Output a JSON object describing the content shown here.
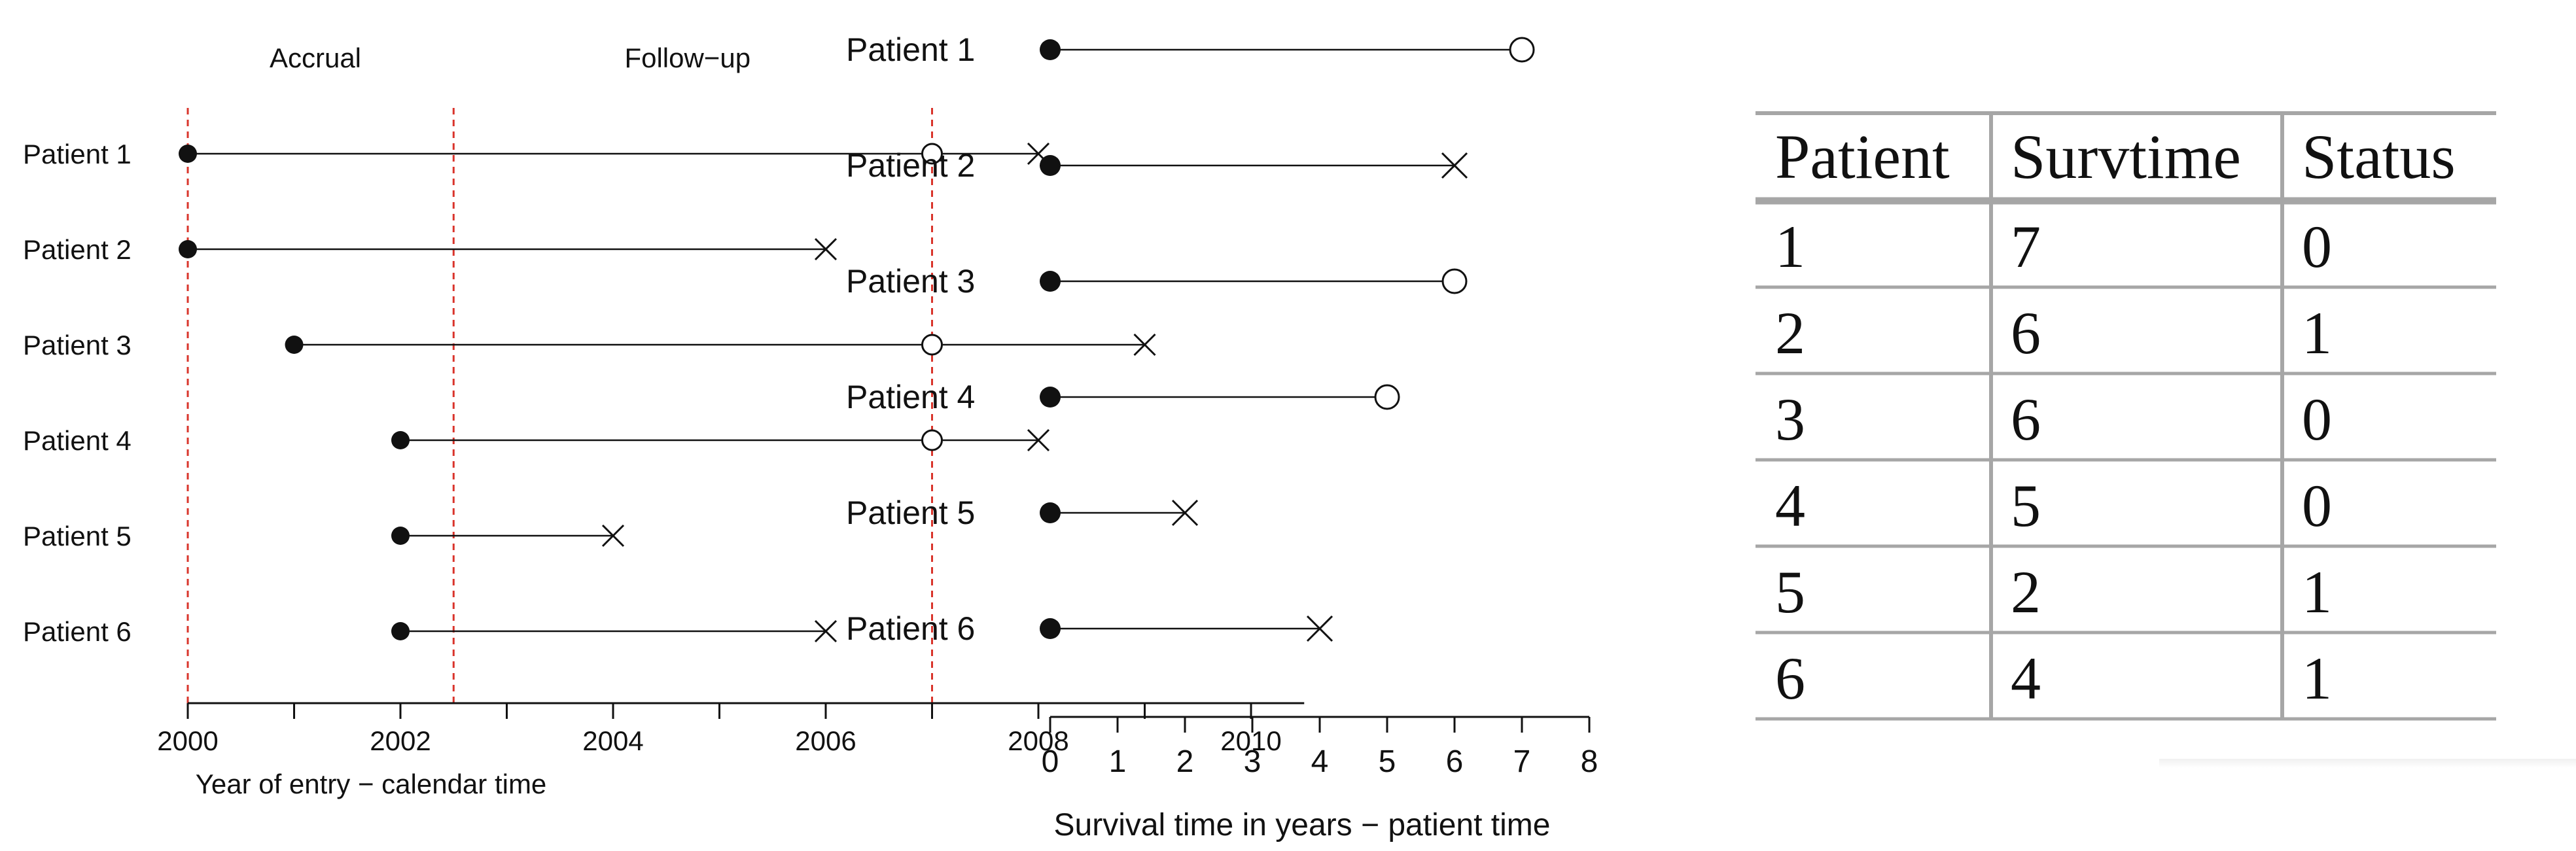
{
  "chart_data": [
    {
      "type": "timeline",
      "xlabel": "Year of entry − calendar time",
      "xlim": [
        2000,
        2010.5
      ],
      "xticks": [
        2000,
        2002,
        2004,
        2006,
        2008,
        2010
      ],
      "annotations": [
        {
          "text": "Accrual",
          "x": 2001.2
        },
        {
          "text": "Follow−up",
          "x": 2004.7
        }
      ],
      "vlines": [
        2000,
        2002.5,
        2007
      ],
      "vline_color": "#d9342b",
      "patients": [
        {
          "label": "Patient 1",
          "start": 2000,
          "end": 2008,
          "end_marker": "cross",
          "open_marks": [
            2007
          ]
        },
        {
          "label": "Patient 2",
          "start": 2000,
          "end": 2006,
          "end_marker": "cross",
          "open_marks": []
        },
        {
          "label": "Patient 3",
          "start": 2001,
          "end": 2009,
          "end_marker": "cross",
          "open_marks": [
            2007
          ]
        },
        {
          "label": "Patient 4",
          "start": 2002,
          "end": 2008,
          "end_marker": "cross",
          "open_marks": [
            2007
          ]
        },
        {
          "label": "Patient 5",
          "start": 2002,
          "end": 2004,
          "end_marker": "cross",
          "open_marks": []
        },
        {
          "label": "Patient 6",
          "start": 2002,
          "end": 2006,
          "end_marker": "cross",
          "open_marks": []
        }
      ]
    },
    {
      "type": "timeline",
      "xlabel": "Survival time in years − patient time",
      "xlim": [
        0,
        8
      ],
      "xticks": [
        0,
        1,
        2,
        3,
        4,
        5,
        6,
        7,
        8
      ],
      "patients": [
        {
          "label": "Patient 1",
          "start": 0,
          "end": 7,
          "end_marker": "circle"
        },
        {
          "label": "Patient 2",
          "start": 0,
          "end": 6,
          "end_marker": "cross"
        },
        {
          "label": "Patient 3",
          "start": 0,
          "end": 6,
          "end_marker": "circle"
        },
        {
          "label": "Patient 4",
          "start": 0,
          "end": 5,
          "end_marker": "circle"
        },
        {
          "label": "Patient 5",
          "start": 0,
          "end": 2,
          "end_marker": "cross"
        },
        {
          "label": "Patient 6",
          "start": 0,
          "end": 4,
          "end_marker": "cross"
        }
      ]
    },
    {
      "type": "table",
      "columns": [
        "Patient",
        "Survtime",
        "Status"
      ],
      "rows": [
        [
          "1",
          "7",
          "0"
        ],
        [
          "2",
          "6",
          "1"
        ],
        [
          "3",
          "6",
          "0"
        ],
        [
          "4",
          "5",
          "0"
        ],
        [
          "5",
          "2",
          "1"
        ],
        [
          "6",
          "4",
          "1"
        ]
      ]
    }
  ]
}
